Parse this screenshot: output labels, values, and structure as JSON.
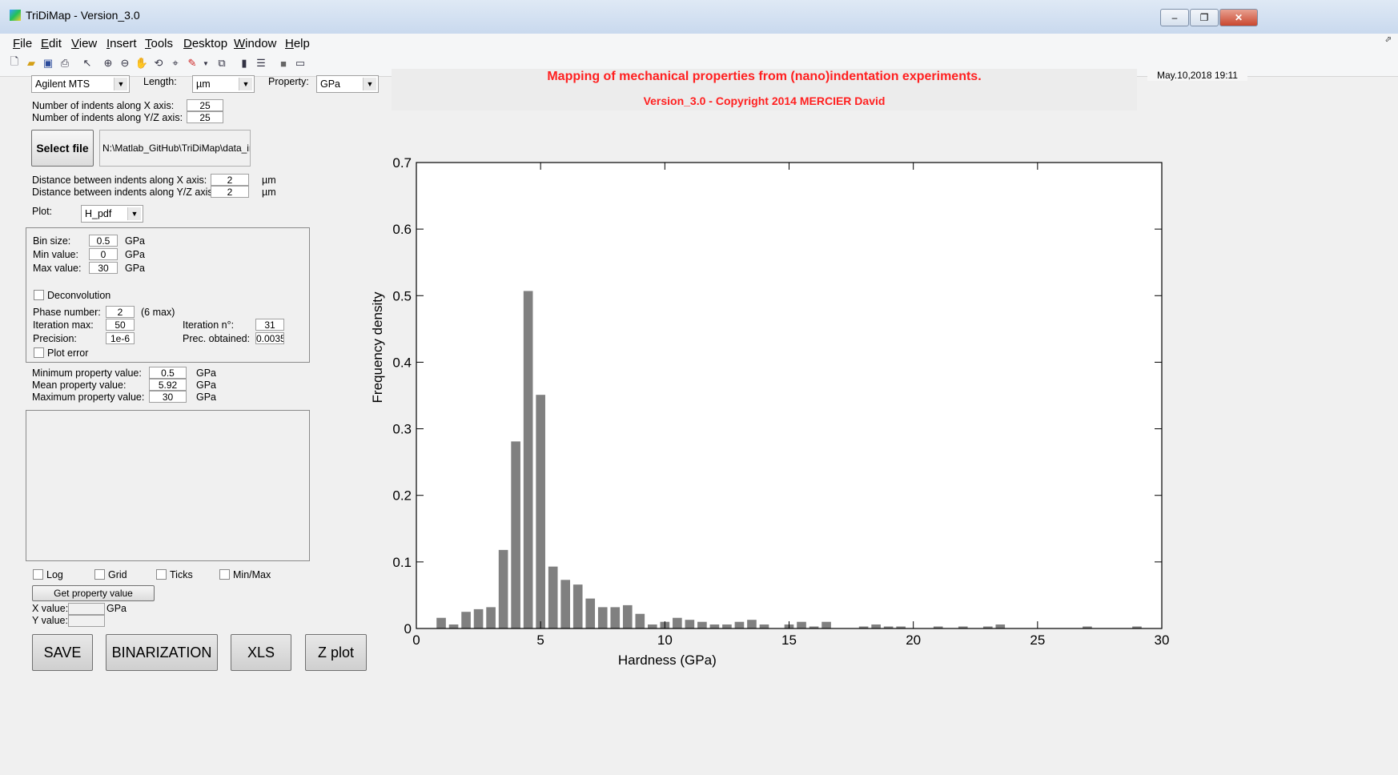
{
  "window": {
    "title": "TriDiMap - Version_3.0"
  },
  "menu": [
    "File",
    "Edit",
    "View",
    "Insert",
    "Tools",
    "Desktop",
    "Window",
    "Help"
  ],
  "toolbar_icons": [
    "new-file-icon",
    "open-folder-icon",
    "save-icon",
    "print-icon",
    "pointer-icon",
    "zoom-in-icon",
    "zoom-out-icon",
    "pan-icon",
    "rotate-icon",
    "data-cursor-icon",
    "brush-icon",
    "dropdown-arrow-icon",
    "link-plot-icon",
    "colorbar-icon",
    "legend-icon",
    "hide-plot-tools-icon",
    "show-plot-tools-icon"
  ],
  "header": {
    "title": "Mapping of mechanical properties from (nano)indentation experiments.",
    "subtitle": "Version_3.0 - Copyright 2014 MERCIER David",
    "date": "May.10,2018 19:11",
    "title_color": "#ff0000"
  },
  "controls": {
    "machine": "Agilent MTS",
    "length_label": "Length:",
    "length_unit": "µm",
    "property_label": "Property:",
    "property_unit": "GPa",
    "indents_x_label": "Number of indents along X axis:",
    "indents_x": "25",
    "indents_y_label": "Number of indents along Y/Z axis:",
    "indents_y": "25",
    "select_file": "Select file",
    "file_path": "N:\\Matlab_GitHub\\TriDiMap\\data_inde",
    "dist_x_label": "Distance between indents along X axis:",
    "dist_x": "2",
    "dist_y_label": "Distance between indents along Y/Z axis:",
    "dist_y": "2",
    "dist_unit": "µm",
    "plot_label": "Plot:",
    "plot_value": "H_pdf"
  },
  "hist_panel": {
    "bin_label": "Bin size:",
    "bin": "0.5",
    "min_label": "Min value:",
    "min": "0",
    "max_label": "Max value:",
    "max": "30",
    "unit": "GPa",
    "deconv_label": "Deconvolution",
    "phase_label": "Phase number:",
    "phase": "2",
    "phase_note": "(6 max)",
    "iter_max_label": "Iteration max:",
    "iter_max": "50",
    "iter_n_label": "Iteration n°:",
    "iter_n": "31",
    "precision_label": "Precision:",
    "precision": "1e-6",
    "prec_obt_label": "Prec. obtained:",
    "prec_obt": "0.0035",
    "plot_error_label": "Plot error"
  },
  "stats": {
    "min_label": "Minimum property value:",
    "min": "0.5",
    "mean_label": "Mean property value:",
    "mean": "5.92",
    "max_label": "Maximum property value:",
    "max": "30",
    "unit": "GPa"
  },
  "options": {
    "log": "Log",
    "grid": "Grid",
    "ticks": "Ticks",
    "minmax": "Min/Max"
  },
  "probe": {
    "button": "Get property value",
    "x_label": "X value:",
    "y_label": "Y value:",
    "unit": "GPa"
  },
  "actions": {
    "save": "SAVE",
    "binarization": "BINARIZATION",
    "xls": "XLS",
    "zplot": "Z plot"
  },
  "chart_data": {
    "type": "bar",
    "xlabel": "Hardness (GPa)",
    "ylabel": "Frequency density",
    "xlim": [
      0,
      30
    ],
    "ylim": [
      0,
      0.7
    ],
    "xticks": [
      0,
      5,
      10,
      15,
      20,
      25,
      30
    ],
    "yticks": [
      0,
      0.1,
      0.2,
      0.3,
      0.4,
      0.5,
      0.6,
      0.7
    ],
    "bar_width": 0.5,
    "bar_color": "#808080",
    "x": [
      1,
      1.5,
      2,
      2.5,
      3,
      3.5,
      4,
      4.5,
      5,
      5.5,
      6,
      6.5,
      7,
      7.5,
      8,
      8.5,
      9,
      9.5,
      10,
      10.5,
      11,
      11.5,
      12,
      12.5,
      13,
      13.5,
      14,
      14.5,
      15,
      15.5,
      16,
      16.5,
      17,
      18,
      18.5,
      19,
      19.5,
      20,
      21,
      22,
      23,
      23.5,
      27,
      29
    ],
    "values": [
      0.016,
      0.006,
      0.025,
      0.029,
      0.032,
      0.118,
      0.281,
      0.507,
      0.351,
      0.093,
      0.073,
      0.066,
      0.045,
      0.032,
      0.032,
      0.035,
      0.022,
      0.006,
      0.01,
      0.016,
      0.013,
      0.01,
      0.006,
      0.006,
      0.01,
      0.013,
      0.006,
      0.0,
      0.006,
      0.01,
      0.003,
      0.01,
      0.0,
      0.003,
      0.006,
      0.003,
      0.003,
      0.0,
      0.003,
      0.003,
      0.003,
      0.006,
      0.003,
      0.003
    ]
  }
}
